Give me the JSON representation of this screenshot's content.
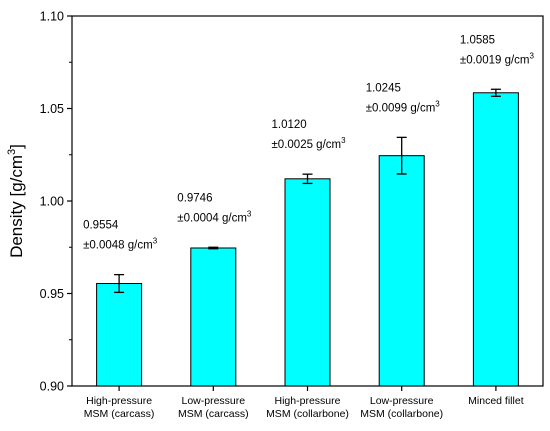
{
  "chart_data": {
    "type": "bar",
    "title": "",
    "xlabel": "",
    "ylabel": "Density [g/cm³]",
    "ylabel_parts": {
      "main": "Density [g/cm",
      "sup": "3",
      "end": "]"
    },
    "ylim": [
      0.9,
      1.1
    ],
    "yticks": [
      "0.90",
      "0.95",
      "1.00",
      "1.05",
      "1.10"
    ],
    "ytick_values": [
      0.9,
      0.95,
      1.0,
      1.05,
      1.1
    ],
    "grid": false,
    "bar_color": "#00FFFF",
    "categories": [
      {
        "line1": "High-pressure",
        "line2": "MSM (carcass)"
      },
      {
        "line1": "Low-pressure",
        "line2": "MSM (carcass)"
      },
      {
        "line1": "High-pressure",
        "line2": "MSM (collarbone)"
      },
      {
        "line1": "Low-pressure",
        "line2": "MSM (collarbone)"
      },
      {
        "line1": "Minced fillet",
        "line2": ""
      }
    ],
    "values": [
      0.9554,
      0.9746,
      1.012,
      1.0245,
      1.0585
    ],
    "errors": [
      0.0048,
      0.0004,
      0.0025,
      0.0099,
      0.0019
    ],
    "labels": [
      {
        "value": "0.9554",
        "err": "±0.0048 g/cm",
        "sup": "3"
      },
      {
        "value": "0.9746",
        "err": "±0.0004 g/cm",
        "sup": "3"
      },
      {
        "value": "1.0120",
        "err": "±0.0025 g/cm",
        "sup": "3"
      },
      {
        "value": "1.0245",
        "err": "±0.0099 g/cm",
        "sup": "3"
      },
      {
        "value": "1.0585",
        "err": "±0.0019 g/cm",
        "sup": "3"
      }
    ]
  }
}
